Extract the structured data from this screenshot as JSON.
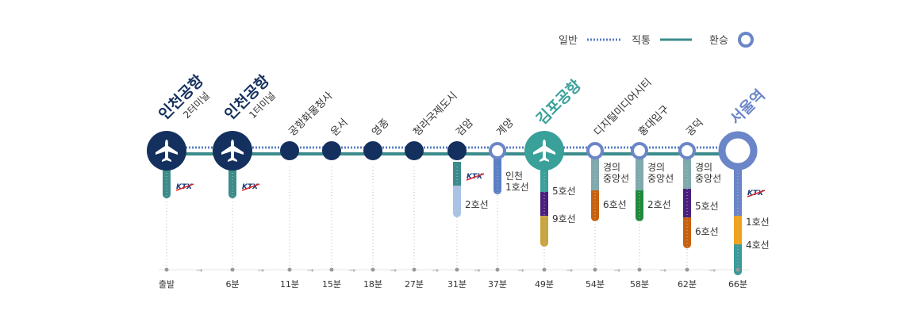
{
  "legend": {
    "normal": "일반",
    "express": "직통",
    "transfer": "환승"
  },
  "colors": {
    "navy": "#14305e",
    "teal": "#3c8c8c",
    "blue": "#5b7fc4",
    "dotted": "#5b7fc4",
    "gimpo": "#3aa09a",
    "seoul": "#6b86c8",
    "ktx": "#1b3a7a",
    "line1": "#5b7fc4",
    "line2": "#a9c3e6",
    "line4": "#3c9a9a",
    "line5": "#4b1f7e",
    "line6": "#c8610f",
    "line9": "#c9a53d",
    "gyeongui": "#7fa9ad",
    "airport": "#3c8c8c",
    "seoul_line1": "#f0a21e"
  },
  "stations": [
    {
      "name": "인천공항",
      "sub": "2터미널",
      "time": "출발",
      "icon": "airplane-icon",
      "style": "big-navy"
    },
    {
      "name": "인천공항",
      "sub": "1터미널",
      "time": "6분",
      "icon": "airplane-icon",
      "style": "big-navy"
    },
    {
      "name": "공항화물청사",
      "time": "11분"
    },
    {
      "name": "운서",
      "time": "15분"
    },
    {
      "name": "영종",
      "time": "18분"
    },
    {
      "name": "청라국제도시",
      "time": "27분"
    },
    {
      "name": "검암",
      "time": "31분"
    },
    {
      "name": "계양",
      "time": "37분"
    },
    {
      "name": "김포공항",
      "time": "49분",
      "icon": "airplane-icon",
      "style": "big-teal"
    },
    {
      "name": "디지털미디어시티",
      "time": "54분"
    },
    {
      "name": "홍대입구",
      "time": "58분"
    },
    {
      "name": "공덕",
      "time": "62분"
    },
    {
      "name": "서울역",
      "time": "66분",
      "style": "big-blue"
    }
  ],
  "transfers": [
    {
      "station": 0,
      "labels": [
        "KTX"
      ]
    },
    {
      "station": 1,
      "labels": [
        "KTX"
      ]
    },
    {
      "station": 6,
      "labels": [
        "KTX",
        "2호선"
      ]
    },
    {
      "station": 7,
      "labels": [
        "인천",
        "1호선"
      ]
    },
    {
      "station": 8,
      "labels": [
        "5호선",
        "9호선"
      ]
    },
    {
      "station": 9,
      "labels": [
        "경의",
        "중앙선",
        "6호선"
      ]
    },
    {
      "station": 10,
      "labels": [
        "경의",
        "중앙선",
        "2호선"
      ]
    },
    {
      "station": 11,
      "labels": [
        "경의",
        "중앙선",
        "5호선",
        "6호선"
      ]
    },
    {
      "station": 12,
      "labels": [
        "KTX",
        "1호선",
        "4호선"
      ]
    }
  ]
}
